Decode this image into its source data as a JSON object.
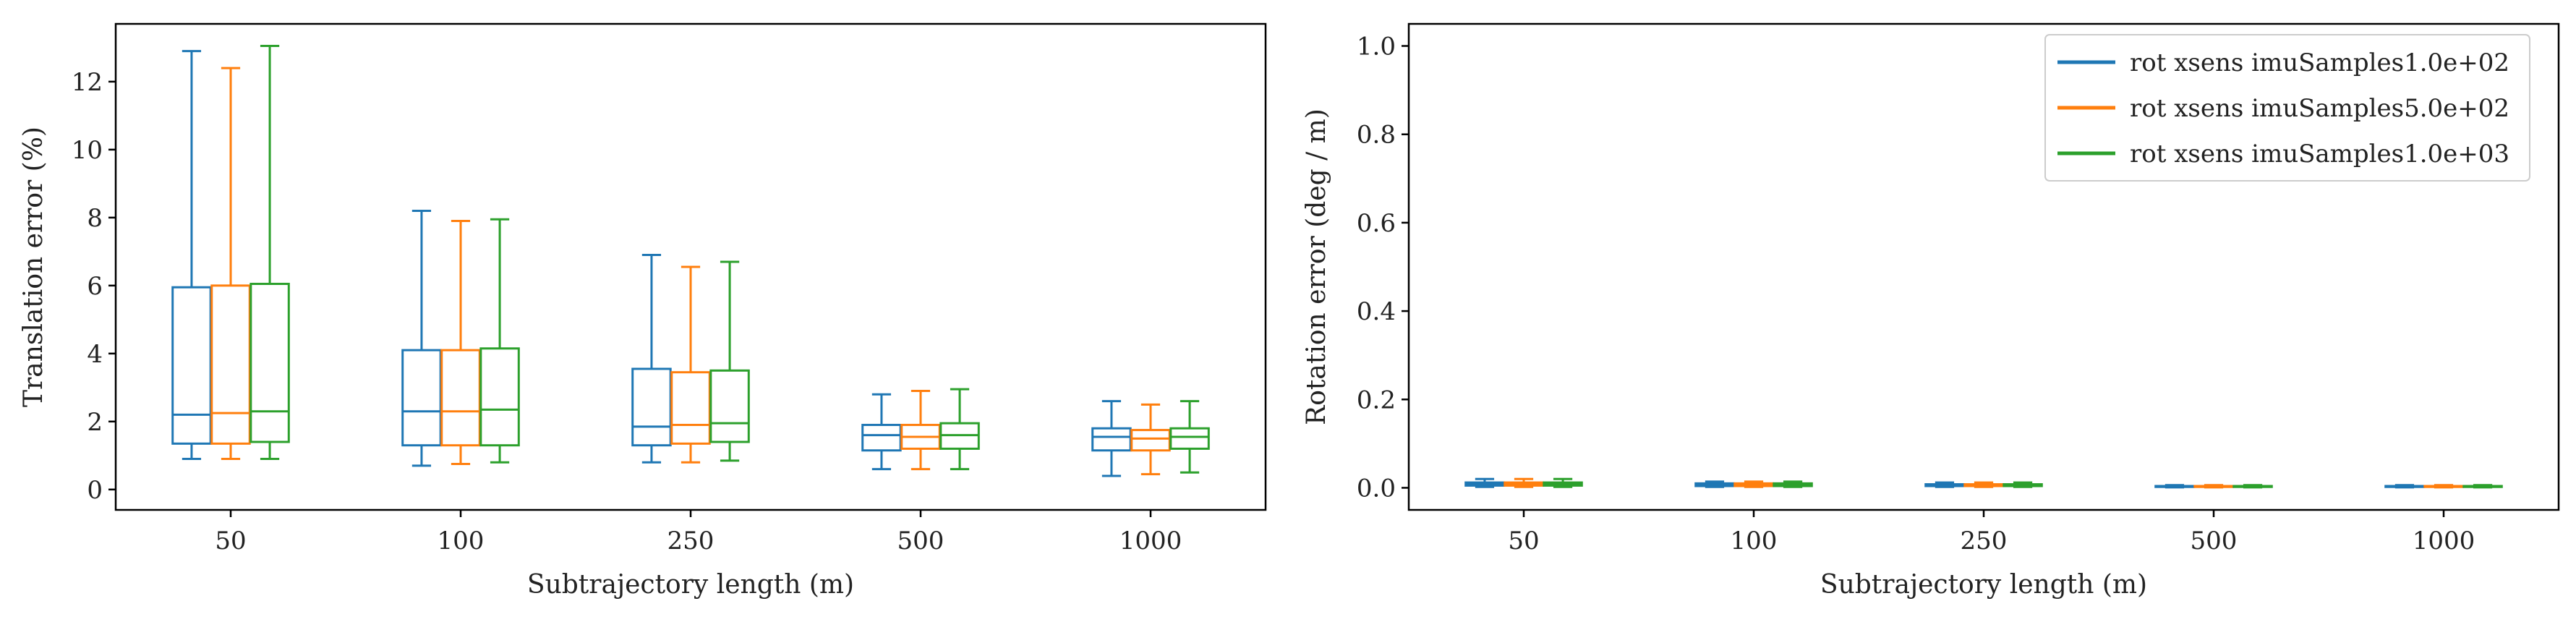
{
  "chart_data": [
    {
      "type": "box",
      "title": "",
      "xlabel": "Subtrajectory length (m)",
      "ylabel": "Translation error (%)",
      "categories": [
        "50",
        "100",
        "250",
        "500",
        "1000"
      ],
      "ylim": [
        -0.6,
        13.7
      ],
      "yticks": [
        0,
        2,
        4,
        6,
        8,
        10,
        12
      ],
      "series": [
        {
          "name": "rot xsens imuSamples1.0e+02",
          "color": "#1f77b4",
          "boxes": [
            {
              "whislo": 0.9,
              "q1": 1.35,
              "med": 2.2,
              "q3": 5.95,
              "whishi": 12.9
            },
            {
              "whislo": 0.7,
              "q1": 1.3,
              "med": 2.3,
              "q3": 4.1,
              "whishi": 8.2
            },
            {
              "whislo": 0.8,
              "q1": 1.3,
              "med": 1.85,
              "q3": 3.55,
              "whishi": 6.9
            },
            {
              "whislo": 0.6,
              "q1": 1.15,
              "med": 1.6,
              "q3": 1.9,
              "whishi": 2.8
            },
            {
              "whislo": 0.4,
              "q1": 1.15,
              "med": 1.55,
              "q3": 1.8,
              "whishi": 2.6
            }
          ]
        },
        {
          "name": "rot xsens imuSamples5.0e+02",
          "color": "#ff7f0e",
          "boxes": [
            {
              "whislo": 0.9,
              "q1": 1.35,
              "med": 2.25,
              "q3": 6.0,
              "whishi": 12.4
            },
            {
              "whislo": 0.75,
              "q1": 1.3,
              "med": 2.3,
              "q3": 4.1,
              "whishi": 7.9
            },
            {
              "whislo": 0.8,
              "q1": 1.35,
              "med": 1.9,
              "q3": 3.45,
              "whishi": 6.55
            },
            {
              "whislo": 0.6,
              "q1": 1.2,
              "med": 1.55,
              "q3": 1.9,
              "whishi": 2.9
            },
            {
              "whislo": 0.45,
              "q1": 1.15,
              "med": 1.5,
              "q3": 1.75,
              "whishi": 2.5
            }
          ]
        },
        {
          "name": "rot xsens imuSamples1.0e+03",
          "color": "#2ca02c",
          "boxes": [
            {
              "whislo": 0.9,
              "q1": 1.4,
              "med": 2.3,
              "q3": 6.05,
              "whishi": 13.05
            },
            {
              "whislo": 0.8,
              "q1": 1.3,
              "med": 2.35,
              "q3": 4.15,
              "whishi": 7.95
            },
            {
              "whislo": 0.85,
              "q1": 1.4,
              "med": 1.95,
              "q3": 3.5,
              "whishi": 6.7
            },
            {
              "whislo": 0.6,
              "q1": 1.2,
              "med": 1.6,
              "q3": 1.95,
              "whishi": 2.95
            },
            {
              "whislo": 0.5,
              "q1": 1.2,
              "med": 1.55,
              "q3": 1.8,
              "whishi": 2.6
            }
          ]
        }
      ]
    },
    {
      "type": "box",
      "title": "",
      "xlabel": "Subtrajectory length (m)",
      "ylabel": "Rotation error (deg / m)",
      "categories": [
        "50",
        "100",
        "250",
        "500",
        "1000"
      ],
      "ylim": [
        -0.05,
        1.05
      ],
      "yticks": [
        "0.0",
        "0.2",
        "0.4",
        "0.6",
        "0.8",
        "1.0"
      ],
      "legend_position": "top-right",
      "series": [
        {
          "name": "rot xsens imuSamples1.0e+02",
          "color": "#1f77b4",
          "boxes": [
            {
              "whislo": 0.002,
              "q1": 0.005,
              "med": 0.008,
              "q3": 0.012,
              "whishi": 0.02
            },
            {
              "whislo": 0.002,
              "q1": 0.004,
              "med": 0.007,
              "q3": 0.01,
              "whishi": 0.014
            },
            {
              "whislo": 0.002,
              "q1": 0.004,
              "med": 0.006,
              "q3": 0.008,
              "whishi": 0.012
            },
            {
              "whislo": 0.001,
              "q1": 0.002,
              "med": 0.003,
              "q3": 0.004,
              "whishi": 0.006
            },
            {
              "whislo": 0.001,
              "q1": 0.002,
              "med": 0.003,
              "q3": 0.004,
              "whishi": 0.006
            }
          ]
        },
        {
          "name": "rot xsens imuSamples5.0e+02",
          "color": "#ff7f0e",
          "boxes": [
            {
              "whislo": 0.002,
              "q1": 0.005,
              "med": 0.008,
              "q3": 0.012,
              "whishi": 0.02
            },
            {
              "whislo": 0.002,
              "q1": 0.004,
              "med": 0.007,
              "q3": 0.01,
              "whishi": 0.014
            },
            {
              "whislo": 0.002,
              "q1": 0.004,
              "med": 0.006,
              "q3": 0.008,
              "whishi": 0.012
            },
            {
              "whislo": 0.001,
              "q1": 0.002,
              "med": 0.003,
              "q3": 0.004,
              "whishi": 0.006
            },
            {
              "whislo": 0.001,
              "q1": 0.002,
              "med": 0.003,
              "q3": 0.004,
              "whishi": 0.006
            }
          ]
        },
        {
          "name": "rot xsens imuSamples1.0e+03",
          "color": "#2ca02c",
          "boxes": [
            {
              "whislo": 0.002,
              "q1": 0.005,
              "med": 0.008,
              "q3": 0.012,
              "whishi": 0.02
            },
            {
              "whislo": 0.002,
              "q1": 0.004,
              "med": 0.007,
              "q3": 0.01,
              "whishi": 0.014
            },
            {
              "whislo": 0.002,
              "q1": 0.004,
              "med": 0.006,
              "q3": 0.008,
              "whishi": 0.012
            },
            {
              "whislo": 0.001,
              "q1": 0.002,
              "med": 0.003,
              "q3": 0.004,
              "whishi": 0.006
            },
            {
              "whislo": 0.001,
              "q1": 0.002,
              "med": 0.003,
              "q3": 0.004,
              "whishi": 0.006
            }
          ]
        }
      ]
    }
  ]
}
